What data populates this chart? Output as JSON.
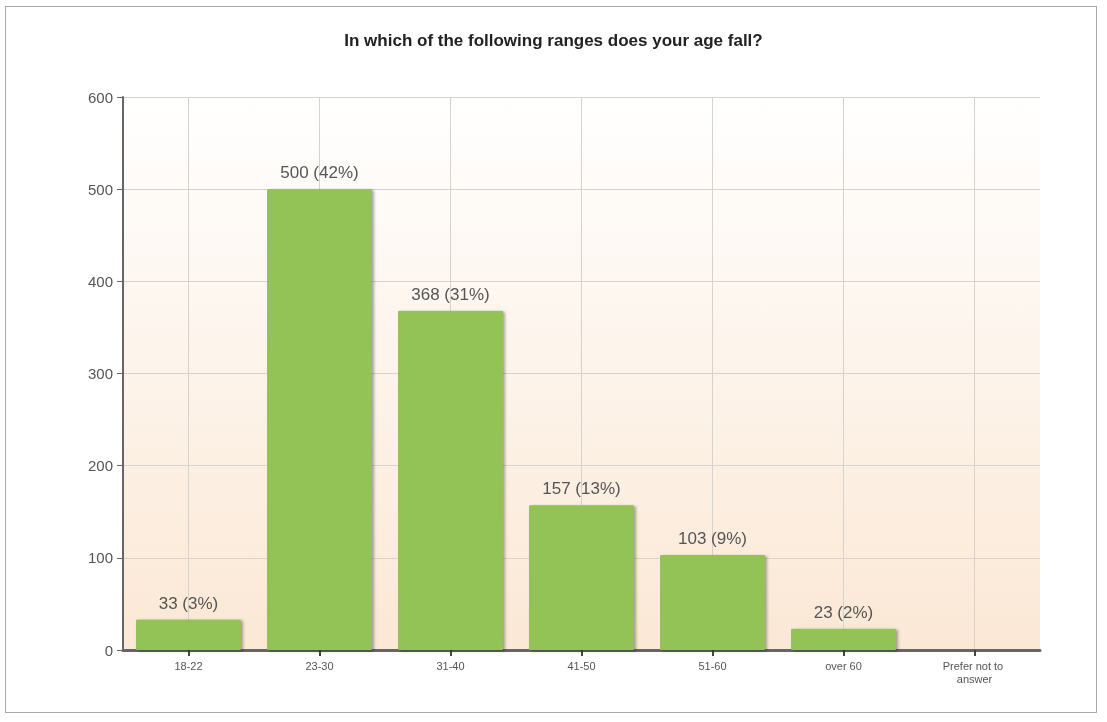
{
  "chart_data": {
    "type": "bar",
    "title": "In which of the following ranges does your age fall?",
    "categories": [
      "18-22",
      "23-30",
      "31-40",
      "41-50",
      "51-60",
      "over 60",
      "Prefer not to answer"
    ],
    "values": [
      33,
      500,
      368,
      157,
      103,
      23,
      null
    ],
    "value_labels": [
      "33 (3%)",
      "500 (42%)",
      "368 (31%)",
      "157 (13%)",
      "103 (9%)",
      "23 (2%)",
      null
    ],
    "color": "#93c256",
    "ylim": [
      0,
      600
    ],
    "yticks": [
      0,
      100,
      200,
      300,
      400,
      500,
      600
    ],
    "grid": true
  }
}
